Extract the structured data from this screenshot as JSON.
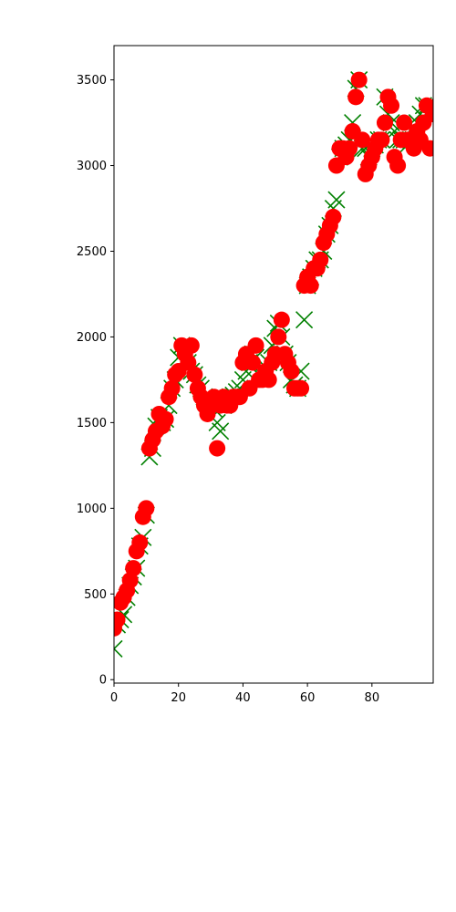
{
  "chart_data": {
    "type": "line",
    "title": "",
    "xlabel": "",
    "ylabel": "",
    "xlim": [
      0,
      99
    ],
    "ylim": [
      -20,
      3700
    ],
    "grid": false,
    "x_ticks": [
      0,
      20,
      40,
      60,
      80
    ],
    "x_tick_labels": [
      "0",
      "20",
      "40",
      "60",
      "80"
    ],
    "y_ticks": [
      0,
      500,
      1000,
      1500,
      2000,
      2500,
      3000,
      3500
    ],
    "y_tick_labels": [
      "0",
      "500",
      "1000",
      "1500",
      "2000",
      "2500",
      "3000",
      "3500"
    ],
    "x": [
      0,
      1,
      2,
      3,
      4,
      5,
      6,
      7,
      8,
      9,
      10,
      11,
      12,
      13,
      14,
      15,
      16,
      17,
      18,
      19,
      20,
      21,
      22,
      23,
      24,
      25,
      26,
      27,
      28,
      29,
      30,
      31,
      32,
      33,
      34,
      35,
      36,
      37,
      38,
      39,
      40,
      41,
      42,
      43,
      44,
      45,
      46,
      47,
      48,
      49,
      50,
      51,
      52,
      53,
      54,
      55,
      56,
      57,
      58,
      59,
      60,
      61,
      62,
      63,
      64,
      65,
      66,
      67,
      68,
      69,
      70,
      71,
      72,
      73,
      74,
      75,
      76,
      77,
      78,
      79,
      80,
      81,
      82,
      83,
      84,
      85,
      86,
      87,
      88,
      89,
      90,
      91,
      92,
      93,
      94,
      95,
      96,
      97,
      98,
      99
    ],
    "series": [
      {
        "marker": "x",
        "color": "#008000",
        "values": [
          180,
          320,
          350,
          380,
          480,
          550,
          600,
          650,
          780,
          830,
          960,
          1300,
          1350,
          1480,
          1530,
          1500,
          1520,
          1600,
          1700,
          1750,
          1880,
          1950,
          1920,
          1850,
          1800,
          1780,
          1720,
          1700,
          1650,
          1620,
          1600,
          1580,
          1500,
          1450,
          1600,
          1620,
          1650,
          1660,
          1680,
          1700,
          1750,
          1800,
          1850,
          1900,
          1880,
          1780,
          1760,
          1800,
          1850,
          1950,
          2050,
          2080,
          2000,
          1900,
          1850,
          1750,
          1720,
          1700,
          1800,
          2100,
          2300,
          2350,
          2400,
          2450,
          2450,
          2500,
          2600,
          2650,
          2750,
          2800,
          3050,
          3100,
          3120,
          3150,
          3250,
          3450,
          3500,
          3100,
          3100,
          3050,
          3100,
          3120,
          3150,
          3150,
          3400,
          3300,
          3250,
          3200,
          3150,
          3150,
          3150,
          3120,
          3150,
          3200,
          3250,
          3300,
          3350,
          3350,
          3300,
          3320
        ]
      },
      {
        "marker": "o",
        "color": "#ff0000",
        "values": [
          300,
          350,
          450,
          480,
          520,
          580,
          650,
          750,
          800,
          950,
          1000,
          1350,
          1400,
          1450,
          1550,
          1480,
          1520,
          1650,
          1700,
          1780,
          1800,
          1950,
          1900,
          1850,
          1950,
          1780,
          1700,
          1650,
          1600,
          1550,
          1600,
          1650,
          1350,
          1600,
          1650,
          1600,
          1600,
          1650,
          1650,
          1650,
          1850,
          1900,
          1700,
          1850,
          1950,
          1750,
          1750,
          1800,
          1750,
          1850,
          1900,
          2000,
          2100,
          1900,
          1850,
          1800,
          1700,
          1700,
          1700,
          2300,
          2350,
          2300,
          2400,
          2400,
          2450,
          2550,
          2600,
          2650,
          2700,
          3000,
          3100,
          3100,
          3050,
          3100,
          3200,
          3400,
          3500,
          3150,
          2950,
          3000,
          3050,
          3100,
          3150,
          3150,
          3250,
          3400,
          3350,
          3050,
          3000,
          3150,
          3250,
          3150,
          3150,
          3100,
          3200,
          3150,
          3250,
          3350,
          3100,
          3300
        ]
      }
    ]
  }
}
